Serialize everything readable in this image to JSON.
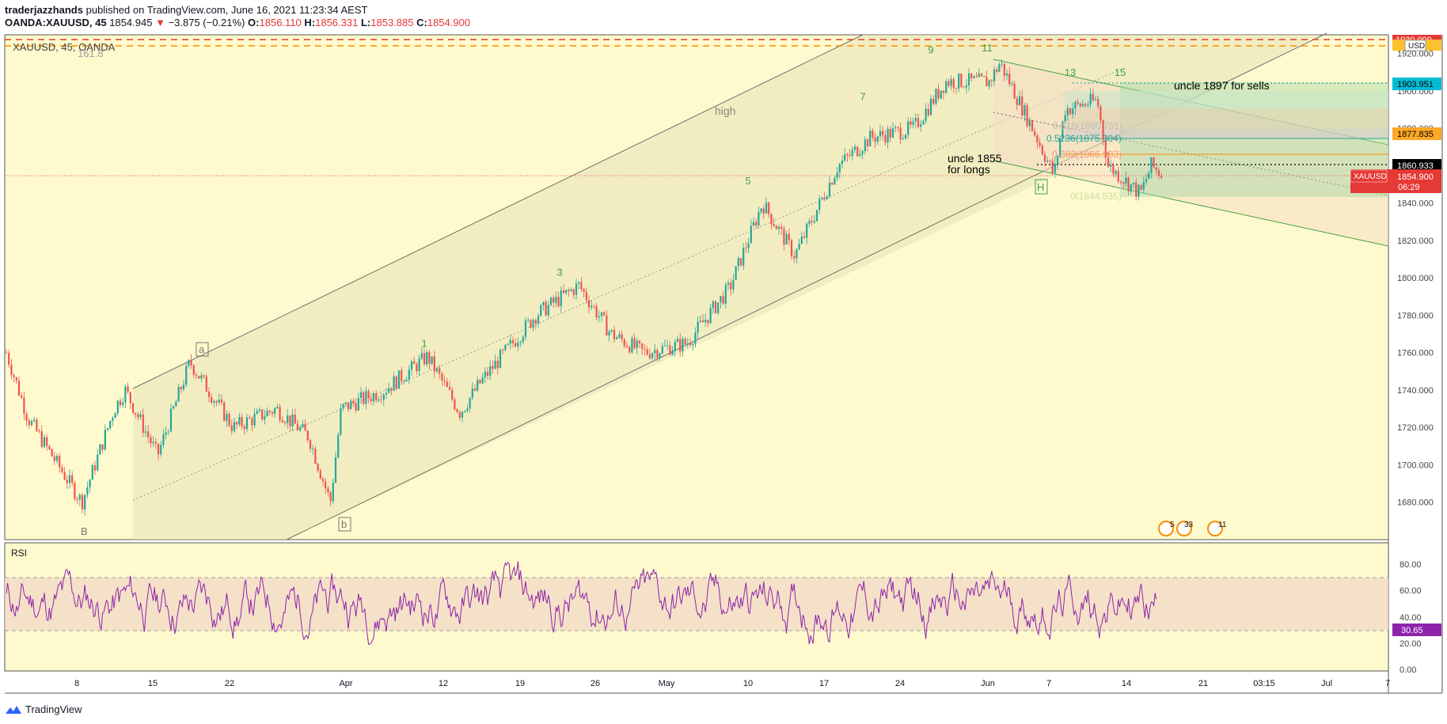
{
  "header": {
    "author": "traderjazzhands",
    "published": "published on TradingView.com, June 16, 2021 11:23:34 AEST",
    "symbol": "OANDA:XAUUSD, 45",
    "last": "1854.945",
    "arrow": "▼",
    "change": "−3.875 (−0.21%)",
    "o_label": "O:",
    "o": "1856.110",
    "h_label": "H:",
    "h": "1856.331",
    "l_label": "L:",
    "l": "1853.885",
    "c_label": "C:",
    "c": "1854.900"
  },
  "chart": {
    "watermark": "XAUUSD, 45, OANDA",
    "currency": "USD",
    "colors": {
      "background": "#fffacd",
      "up": "#26a69a",
      "down": "#ef5350",
      "wave_label": "#43a047",
      "rsi": "#8e24aa",
      "channel": "#707070"
    }
  },
  "price_labels": {
    "top_partial": "1930.000",
    "cyan": "1903.951",
    "orange": "1877.835",
    "black": "1860.933",
    "symbol": "XAUUSD",
    "current": "1854.900",
    "countdown": "06:29"
  },
  "annotations": {
    "fib_161": "161.8",
    "high": "high",
    "uncle_long_1": "uncle 1855",
    "uncle_long_2": "for longs",
    "uncle_sell": "uncle 1897 for sells",
    "fib_05236": "0.5236(1875.304)",
    "fib_0382": "0.382(1866.983)",
    "fib_0": "0(1844.535)",
    "fib_0618": "0.618(1880.751)",
    "box_a": "a",
    "box_b": "b",
    "box_H": "H",
    "letter_B": "B",
    "events": [
      "5",
      "33",
      "11"
    ]
  },
  "rsi": {
    "label": "RSI",
    "current": "30.65",
    "upper_band": 70,
    "lower_band": 30
  },
  "footer": {
    "brand": "TradingView"
  },
  "chart_data": {
    "type": "candlestick",
    "title": "XAUUSD, 45, OANDA",
    "xlabel": "",
    "ylabel": "",
    "ylim": [
      1660,
      1930
    ],
    "y_ticks": [
      "1920.000",
      "1900.000",
      "1880.000",
      "1860.000",
      "1840.000",
      "1820.000",
      "1800.000",
      "1780.000",
      "1760.000",
      "1740.000",
      "1720.000",
      "1700.000",
      "1680.000"
    ],
    "x_ticks": [
      "8",
      "15",
      "22",
      "Apr",
      "12",
      "19",
      "26",
      "May",
      "10",
      "17",
      "24",
      "Jun",
      "7",
      "14",
      "21",
      "03:15",
      "Jul",
      "7"
    ],
    "approx_path": {
      "x": [
        "Mar 1",
        "Mar 3",
        "Mar 8",
        "Mar 11",
        "Mar 12",
        "Mar 15",
        "Mar 18",
        "Mar 22",
        "Mar 26",
        "Mar 29",
        "Mar 31",
        "Apr 1",
        "Apr 5",
        "Apr 9",
        "Apr 12",
        "Apr 14",
        "Apr 19",
        "Apr 23",
        "Apr 26",
        "Apr 29",
        "May 3",
        "May 7",
        "May 10",
        "May 13",
        "May 17",
        "May 20",
        "May 24",
        "May 27",
        "May 31",
        "Jun 1",
        "Jun 4",
        "Jun 6",
        "Jun 7",
        "Jun 10",
        "Jun 11",
        "Jun 14",
        "Jun 15",
        "Jun 16"
      ],
      "close": [
        1760,
        1725,
        1680,
        1730,
        1740,
        1705,
        1755,
        1720,
        1730,
        1715,
        1680,
        1730,
        1740,
        1758,
        1728,
        1745,
        1780,
        1796,
        1770,
        1760,
        1765,
        1795,
        1840,
        1812,
        1860,
        1875,
        1880,
        1905,
        1905,
        1915,
        1880,
        1855,
        1890,
        1895,
        1860,
        1845,
        1860,
        1855
      ]
    },
    "rsi": {
      "ylim": [
        0,
        100
      ],
      "y_ticks": [
        "80.00",
        "60.00",
        "40.00",
        "20.00",
        "0.00"
      ],
      "bands": [
        30,
        70
      ],
      "last": 30.65
    },
    "wave_labels": [
      {
        "label": "1",
        "date": "Apr 9",
        "price": 1758
      },
      {
        "label": "3",
        "date": "Apr 23",
        "price": 1796
      },
      {
        "label": "5",
        "date": "May 10",
        "price": 1845
      },
      {
        "label": "7",
        "date": "May 20",
        "price": 1890
      },
      {
        "label": "9",
        "date": "May 27",
        "price": 1915
      },
      {
        "label": "11",
        "date": "Jun 1",
        "price": 1916
      },
      {
        "label": "13",
        "date": "Jun 8",
        "price": 1903
      },
      {
        "label": "15",
        "date": "Jun 11",
        "price": 1903
      }
    ]
  }
}
